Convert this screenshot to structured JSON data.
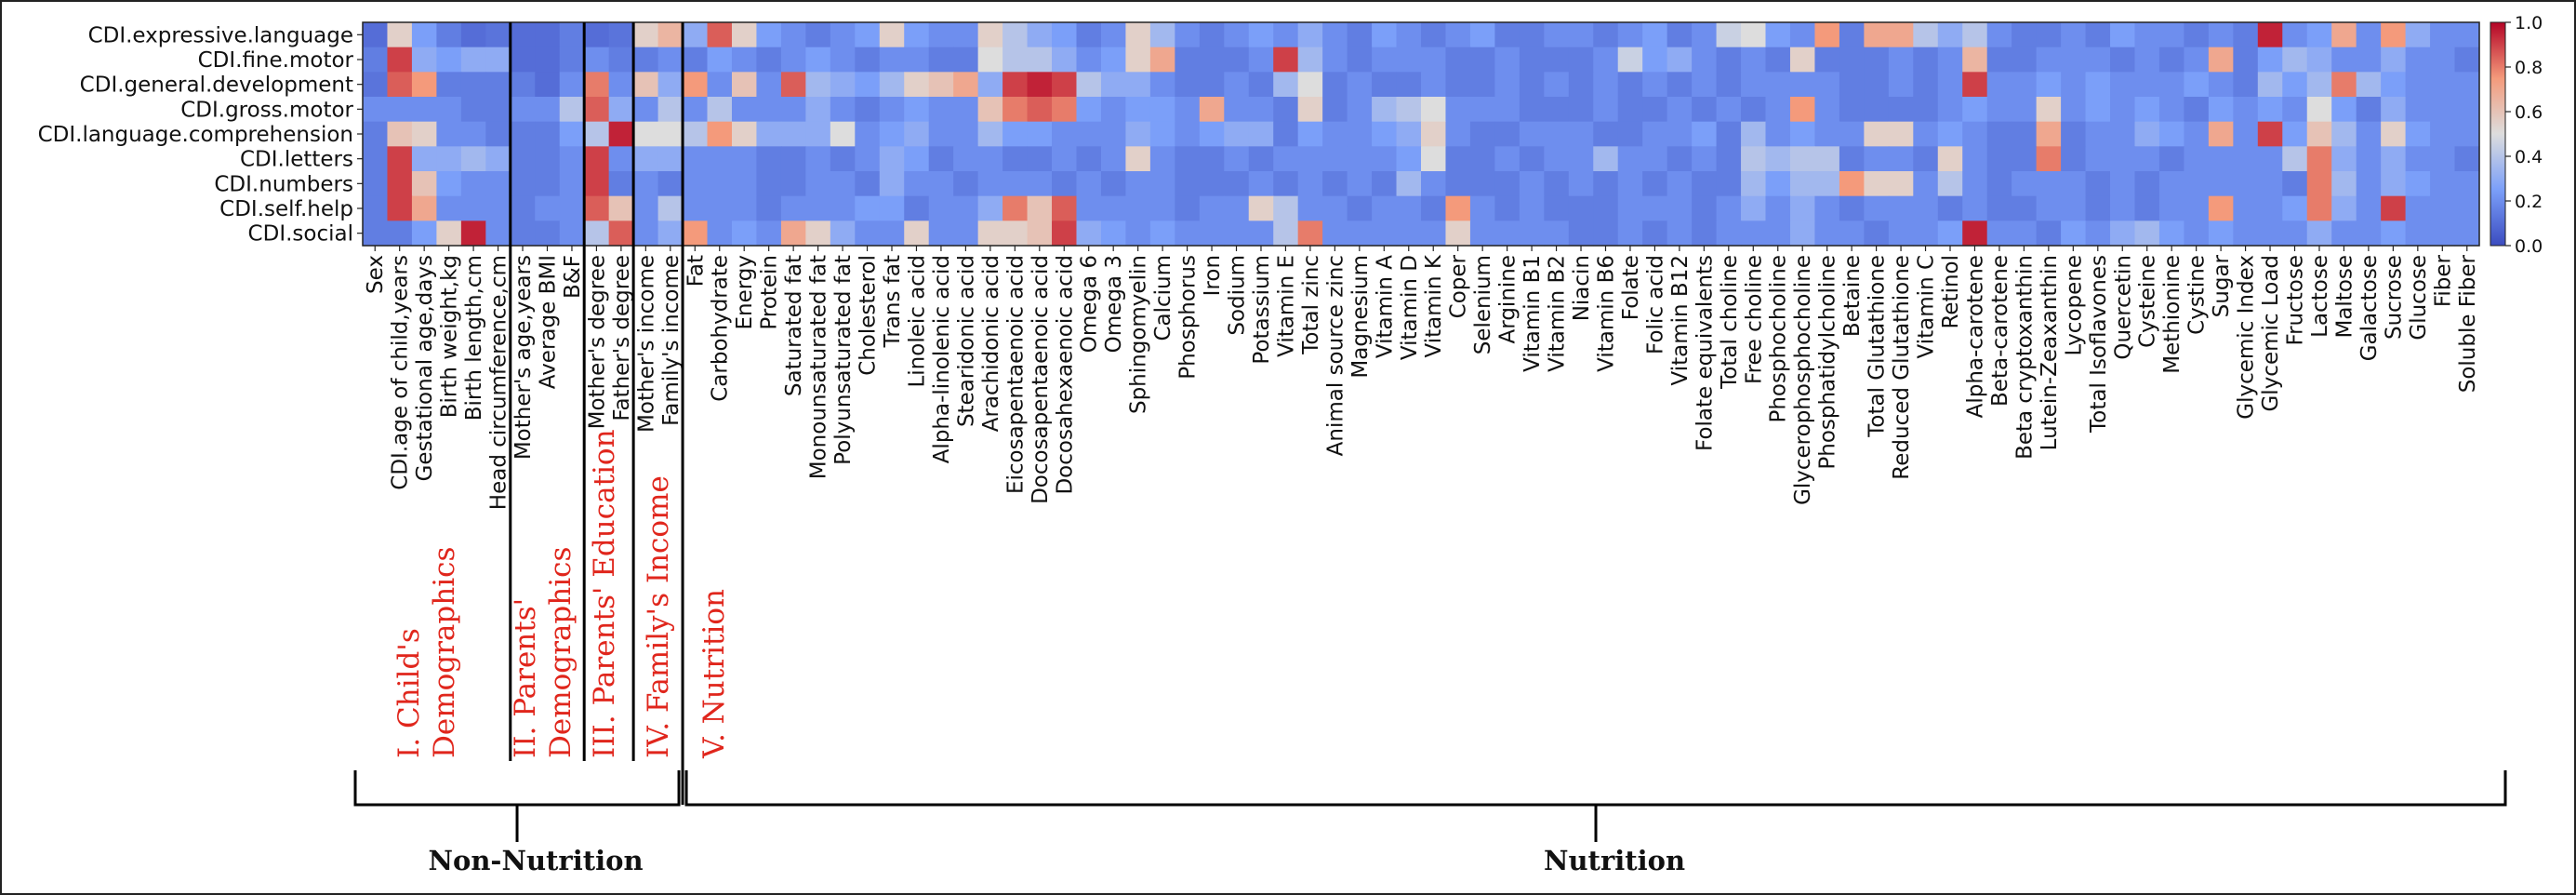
{
  "chart_data": {
    "type": "heatmap",
    "rows": [
      "CDI.expressive.language",
      "CDI.fine.motor",
      "CDI.general.development",
      "CDI.gross.motor",
      "CDI.language.comprehension",
      "CDI.letters",
      "CDI.numbers",
      "CDI.self.help",
      "CDI.social"
    ],
    "columns": [
      "Sex",
      "CDI.age of child,years",
      "Gestational age,days",
      "Birth weight,kg",
      "Birth length,cm",
      "Head circumference,cm",
      "Mother's age,years",
      "Average BMI",
      "B&F",
      "Mother's degree",
      "Father's degree",
      "Mother's income",
      "Family's income",
      "Fat",
      "Carbohydrate",
      "Energy",
      "Protein",
      "Saturated fat",
      "Monounsaturated fat",
      "Polyunsaturated fat",
      "Cholesterol",
      "Trans fat",
      "Linoleic acid",
      "Alpha-linolenic acid",
      "Stearidonic acid",
      "Arachidonic acid",
      "Eicosapentaenoic acid",
      "Docosapentaenoic acid",
      "Docosahexaenoic acid",
      "Omega 6",
      "Omega 3",
      "Sphingomyelin",
      "Calcium",
      "Phosphorus",
      "Iron",
      "Sodium",
      "Potassium",
      "Vitamin E",
      "Total zinc",
      "Animal source zinc",
      "Magnesium",
      "Vitamin A",
      "Vitamin D",
      "Vitamin K",
      "Coper",
      "Selenium",
      "Arginine",
      "Vitamin B1",
      "Vitamin B2",
      "Niacin",
      "Vitamin B6",
      "Folate",
      "Folic acid",
      "Vitamin B12",
      "Folate equivalents",
      "Total choline",
      "Free choline",
      "Phosphocholine",
      "Glycerophosphocholine",
      "Phosphatidylcholine",
      "Betaine",
      "Total Glutathione",
      "Reduced Glutathione",
      "Vitamin C",
      "Retinol",
      "Alpha-carotene",
      "Beta-carotene",
      "Beta cryptoxanthin",
      "Lutein-Zeaxanthin",
      "Lycopene",
      "Total Isoflavones",
      "Quercetin",
      "Cysteine",
      "Methionine",
      "Cystine",
      "Sugar",
      "Glycemic Index",
      "Glycemic Load",
      "Fructose",
      "Lactose",
      "Maltose",
      "Galactose",
      "Sucrose",
      "Glucose",
      "Fiber",
      "Soluble Fiber"
    ],
    "values": [
      [
        0.1,
        0.55,
        0.25,
        0.15,
        0.1,
        0.12,
        0.1,
        0.1,
        0.15,
        0.1,
        0.12,
        0.55,
        0.65,
        0.3,
        0.85,
        0.55,
        0.25,
        0.2,
        0.15,
        0.2,
        0.25,
        0.55,
        0.25,
        0.2,
        0.2,
        0.55,
        0.4,
        0.3,
        0.25,
        0.15,
        0.2,
        0.55,
        0.35,
        0.2,
        0.15,
        0.2,
        0.25,
        0.2,
        0.3,
        0.2,
        0.15,
        0.25,
        0.2,
        0.15,
        0.2,
        0.25,
        0.15,
        0.15,
        0.2,
        0.2,
        0.15,
        0.2,
        0.25,
        0.15,
        0.2,
        0.45,
        0.5,
        0.25,
        0.2,
        0.75,
        0.15,
        0.7,
        0.7,
        0.4,
        0.3,
        0.4,
        0.2,
        0.15,
        0.15,
        0.2,
        0.15,
        0.25,
        0.2,
        0.2,
        0.15,
        0.2,
        0.15,
        0.95,
        0.2,
        0.25,
        0.7,
        0.2,
        0.75,
        0.3,
        0.2,
        0.2
      ],
      [
        0.15,
        0.9,
        0.3,
        0.25,
        0.3,
        0.3,
        0.1,
        0.1,
        0.15,
        0.2,
        0.15,
        0.15,
        0.2,
        0.15,
        0.25,
        0.2,
        0.15,
        0.2,
        0.25,
        0.2,
        0.15,
        0.2,
        0.2,
        0.15,
        0.15,
        0.5,
        0.4,
        0.4,
        0.3,
        0.2,
        0.25,
        0.55,
        0.7,
        0.15,
        0.15,
        0.15,
        0.2,
        0.9,
        0.35,
        0.2,
        0.15,
        0.2,
        0.2,
        0.2,
        0.15,
        0.15,
        0.2,
        0.15,
        0.15,
        0.15,
        0.2,
        0.45,
        0.25,
        0.3,
        0.2,
        0.15,
        0.2,
        0.15,
        0.55,
        0.15,
        0.15,
        0.15,
        0.2,
        0.15,
        0.2,
        0.65,
        0.15,
        0.15,
        0.2,
        0.2,
        0.2,
        0.15,
        0.2,
        0.15,
        0.2,
        0.7,
        0.15,
        0.25,
        0.35,
        0.3,
        0.2,
        0.2,
        0.3,
        0.2,
        0.2,
        0.15
      ],
      [
        0.12,
        0.85,
        0.75,
        0.15,
        0.15,
        0.15,
        0.15,
        0.1,
        0.2,
        0.8,
        0.2,
        0.6,
        0.3,
        0.75,
        0.2,
        0.6,
        0.2,
        0.85,
        0.35,
        0.3,
        0.25,
        0.35,
        0.55,
        0.6,
        0.7,
        0.3,
        0.9,
        0.95,
        0.9,
        0.4,
        0.3,
        0.3,
        0.2,
        0.15,
        0.15,
        0.2,
        0.15,
        0.35,
        0.5,
        0.15,
        0.2,
        0.15,
        0.15,
        0.2,
        0.15,
        0.15,
        0.2,
        0.15,
        0.2,
        0.15,
        0.2,
        0.15,
        0.2,
        0.15,
        0.2,
        0.15,
        0.2,
        0.2,
        0.2,
        0.2,
        0.15,
        0.15,
        0.2,
        0.15,
        0.2,
        0.9,
        0.2,
        0.2,
        0.25,
        0.2,
        0.25,
        0.2,
        0.2,
        0.2,
        0.25,
        0.2,
        0.15,
        0.35,
        0.25,
        0.35,
        0.8,
        0.35,
        0.25,
        0.2,
        0.2,
        0.2
      ],
      [
        0.2,
        0.2,
        0.2,
        0.2,
        0.15,
        0.15,
        0.2,
        0.2,
        0.4,
        0.85,
        0.3,
        0.2,
        0.4,
        0.2,
        0.4,
        0.2,
        0.2,
        0.2,
        0.3,
        0.2,
        0.15,
        0.2,
        0.25,
        0.2,
        0.2,
        0.6,
        0.8,
        0.85,
        0.8,
        0.25,
        0.2,
        0.25,
        0.25,
        0.2,
        0.7,
        0.2,
        0.2,
        0.15,
        0.55,
        0.15,
        0.2,
        0.35,
        0.4,
        0.5,
        0.2,
        0.2,
        0.2,
        0.15,
        0.15,
        0.15,
        0.2,
        0.15,
        0.15,
        0.2,
        0.15,
        0.2,
        0.15,
        0.2,
        0.75,
        0.2,
        0.15,
        0.15,
        0.15,
        0.15,
        0.2,
        0.25,
        0.2,
        0.2,
        0.55,
        0.2,
        0.25,
        0.2,
        0.25,
        0.2,
        0.15,
        0.25,
        0.2,
        0.25,
        0.2,
        0.5,
        0.25,
        0.15,
        0.3,
        0.2,
        0.2,
        0.2
      ],
      [
        0.15,
        0.6,
        0.55,
        0.2,
        0.2,
        0.15,
        0.15,
        0.15,
        0.25,
        0.4,
        0.95,
        0.5,
        0.5,
        0.4,
        0.75,
        0.55,
        0.3,
        0.3,
        0.3,
        0.5,
        0.2,
        0.25,
        0.3,
        0.2,
        0.2,
        0.35,
        0.25,
        0.25,
        0.2,
        0.2,
        0.2,
        0.3,
        0.25,
        0.2,
        0.25,
        0.3,
        0.3,
        0.15,
        0.25,
        0.2,
        0.2,
        0.25,
        0.3,
        0.55,
        0.2,
        0.15,
        0.15,
        0.2,
        0.2,
        0.2,
        0.15,
        0.15,
        0.2,
        0.2,
        0.25,
        0.15,
        0.35,
        0.2,
        0.25,
        0.2,
        0.2,
        0.55,
        0.55,
        0.2,
        0.25,
        0.2,
        0.15,
        0.15,
        0.7,
        0.15,
        0.2,
        0.2,
        0.3,
        0.25,
        0.2,
        0.7,
        0.2,
        0.9,
        0.25,
        0.6,
        0.35,
        0.2,
        0.55,
        0.25,
        0.2,
        0.2
      ],
      [
        0.15,
        0.9,
        0.3,
        0.3,
        0.35,
        0.3,
        0.15,
        0.15,
        0.2,
        0.9,
        0.2,
        0.3,
        0.3,
        0.2,
        0.2,
        0.2,
        0.15,
        0.15,
        0.2,
        0.15,
        0.2,
        0.3,
        0.25,
        0.15,
        0.2,
        0.2,
        0.15,
        0.15,
        0.2,
        0.15,
        0.2,
        0.55,
        0.2,
        0.15,
        0.15,
        0.2,
        0.15,
        0.2,
        0.2,
        0.2,
        0.2,
        0.2,
        0.25,
        0.5,
        0.15,
        0.15,
        0.2,
        0.15,
        0.2,
        0.2,
        0.35,
        0.2,
        0.2,
        0.15,
        0.2,
        0.15,
        0.4,
        0.35,
        0.4,
        0.4,
        0.15,
        0.2,
        0.2,
        0.15,
        0.55,
        0.2,
        0.15,
        0.15,
        0.8,
        0.15,
        0.2,
        0.2,
        0.2,
        0.15,
        0.2,
        0.2,
        0.2,
        0.2,
        0.4,
        0.8,
        0.3,
        0.2,
        0.3,
        0.2,
        0.2,
        0.15
      ],
      [
        0.15,
        0.9,
        0.6,
        0.25,
        0.2,
        0.2,
        0.15,
        0.15,
        0.2,
        0.9,
        0.15,
        0.2,
        0.15,
        0.2,
        0.2,
        0.2,
        0.15,
        0.15,
        0.2,
        0.2,
        0.15,
        0.3,
        0.2,
        0.2,
        0.15,
        0.2,
        0.2,
        0.2,
        0.15,
        0.2,
        0.15,
        0.2,
        0.2,
        0.15,
        0.15,
        0.15,
        0.2,
        0.15,
        0.2,
        0.15,
        0.2,
        0.15,
        0.35,
        0.2,
        0.15,
        0.15,
        0.15,
        0.2,
        0.15,
        0.2,
        0.15,
        0.2,
        0.15,
        0.2,
        0.15,
        0.15,
        0.35,
        0.25,
        0.35,
        0.35,
        0.75,
        0.55,
        0.55,
        0.2,
        0.4,
        0.2,
        0.15,
        0.2,
        0.2,
        0.2,
        0.15,
        0.2,
        0.15,
        0.2,
        0.2,
        0.2,
        0.2,
        0.2,
        0.15,
        0.8,
        0.35,
        0.2,
        0.3,
        0.25,
        0.2,
        0.2
      ],
      [
        0.15,
        0.9,
        0.7,
        0.2,
        0.2,
        0.2,
        0.15,
        0.2,
        0.2,
        0.85,
        0.6,
        0.2,
        0.4,
        0.2,
        0.2,
        0.2,
        0.15,
        0.2,
        0.2,
        0.2,
        0.25,
        0.25,
        0.15,
        0.2,
        0.2,
        0.3,
        0.8,
        0.6,
        0.85,
        0.2,
        0.2,
        0.2,
        0.2,
        0.15,
        0.2,
        0.2,
        0.55,
        0.4,
        0.2,
        0.2,
        0.15,
        0.2,
        0.2,
        0.15,
        0.75,
        0.2,
        0.15,
        0.2,
        0.15,
        0.15,
        0.15,
        0.2,
        0.2,
        0.2,
        0.15,
        0.2,
        0.3,
        0.2,
        0.3,
        0.2,
        0.15,
        0.2,
        0.2,
        0.2,
        0.15,
        0.2,
        0.15,
        0.15,
        0.2,
        0.2,
        0.15,
        0.2,
        0.15,
        0.2,
        0.2,
        0.75,
        0.2,
        0.2,
        0.25,
        0.8,
        0.3,
        0.2,
        0.9,
        0.2,
        0.2,
        0.2
      ],
      [
        0.15,
        0.15,
        0.25,
        0.55,
        0.95,
        0.2,
        0.15,
        0.15,
        0.2,
        0.4,
        0.85,
        0.2,
        0.3,
        0.75,
        0.2,
        0.25,
        0.2,
        0.7,
        0.55,
        0.3,
        0.2,
        0.2,
        0.55,
        0.2,
        0.2,
        0.55,
        0.55,
        0.6,
        0.9,
        0.3,
        0.25,
        0.2,
        0.25,
        0.2,
        0.2,
        0.2,
        0.2,
        0.4,
        0.8,
        0.2,
        0.2,
        0.2,
        0.2,
        0.2,
        0.55,
        0.2,
        0.2,
        0.2,
        0.2,
        0.15,
        0.15,
        0.2,
        0.15,
        0.2,
        0.15,
        0.2,
        0.2,
        0.2,
        0.3,
        0.2,
        0.2,
        0.15,
        0.2,
        0.2,
        0.25,
        0.95,
        0.2,
        0.2,
        0.15,
        0.25,
        0.2,
        0.3,
        0.35,
        0.25,
        0.2,
        0.25,
        0.2,
        0.2,
        0.2,
        0.3,
        0.2,
        0.2,
        0.25,
        0.2,
        0.2,
        0.2
      ]
    ],
    "color_scale": {
      "min": 0.0,
      "max": 1.0,
      "colormap": "coolwarm",
      "ticks": [
        "0.0",
        "0.2",
        "0.4",
        "0.6",
        "0.8",
        "1.0"
      ]
    },
    "group_separators_after_column": [
      "Head circumference,cm",
      "B&F",
      "Father's degree",
      "Family's income"
    ],
    "groups": [
      {
        "lines": [
          "I. Child's",
          "Demographics"
        ]
      },
      {
        "lines": [
          "II. Parents'",
          "Demographics"
        ]
      },
      {
        "lines": [
          "III. Parents' Education"
        ]
      },
      {
        "lines": [
          "IV. Family's Income"
        ]
      },
      {
        "lines": [
          "V. Nutrition"
        ]
      }
    ],
    "brackets": [
      {
        "label": "Non-Nutrition"
      },
      {
        "label": "Nutrition"
      }
    ]
  }
}
